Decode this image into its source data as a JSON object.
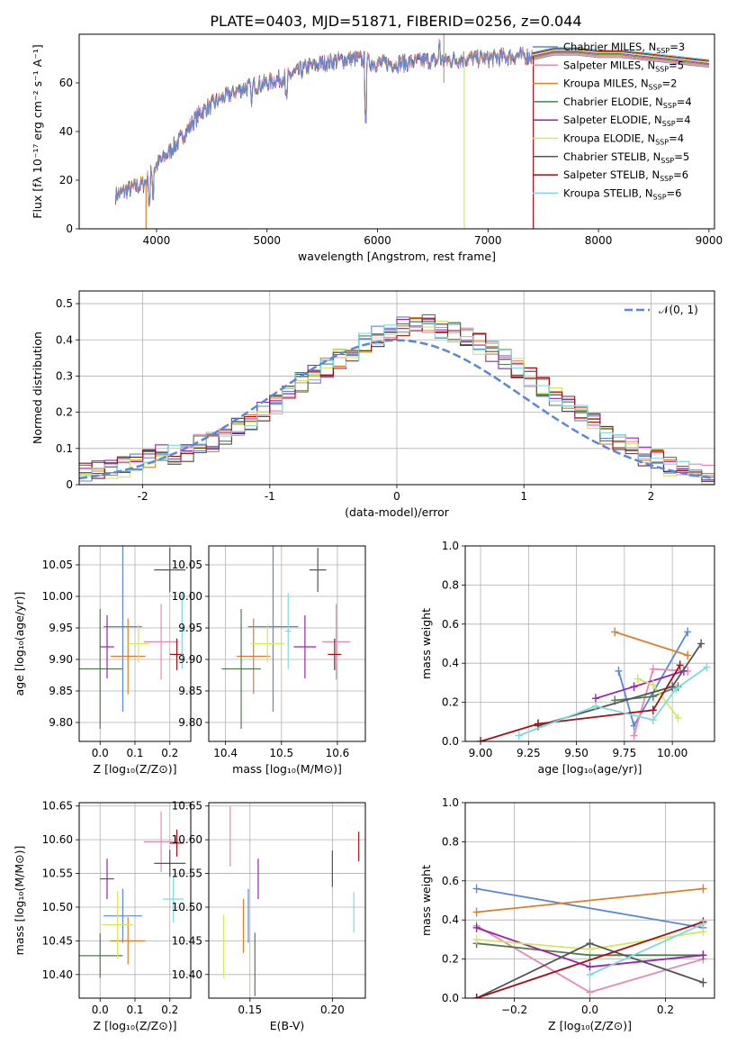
{
  "figure_title": "PLATE=0403, MJD=51871, FIBERID=0256, z=0.044",
  "colors": {
    "chabrier_miles": "#5b87d8",
    "salpeter_miles": "#e889b4",
    "kroupa_miles": "#dd7f2a",
    "chabrier_elodie": "#4f7d52",
    "salpeter_elodie": "#9a22b0",
    "kroupa_elodie": "#d3e85a",
    "chabrier_stelib": "#555555",
    "salpeter_stelib": "#a50f15",
    "kroupa_stelib": "#7fd9dc",
    "normal": "#5b87d8"
  },
  "chart_data": [
    {
      "id": "spectrum",
      "type": "line",
      "xlabel": "wavelength [Angstrom, rest frame]",
      "ylabel": "Flux [fλ 10⁻¹⁷ erg cm⁻² s⁻¹ A⁻¹]",
      "xlim": [
        3300,
        9050
      ],
      "ylim": [
        0,
        80
      ],
      "xticks": [
        4000,
        5000,
        6000,
        7000,
        8000,
        9000
      ],
      "yticks": [
        0,
        20,
        40,
        60
      ],
      "legend_position": "right",
      "legend": [
        {
          "model": "Chabrier MILES",
          "n": "3",
          "color_key": "chabrier_miles"
        },
        {
          "model": "Salpeter MILES",
          "n": "5",
          "color_key": "salpeter_miles"
        },
        {
          "model": "Kroupa MILES",
          "n": "2",
          "color_key": "kroupa_miles"
        },
        {
          "model": "Chabrier ELODIE",
          "n": "4",
          "color_key": "chabrier_elodie"
        },
        {
          "model": "Salpeter ELODIE",
          "n": "4",
          "color_key": "salpeter_elodie"
        },
        {
          "model": "Kroupa ELODIE",
          "n": "4",
          "color_key": "kroupa_elodie"
        },
        {
          "model": "Chabrier STELIB",
          "n": "5",
          "color_key": "chabrier_stelib"
        },
        {
          "model": "Salpeter STELIB",
          "n": "6",
          "color_key": "salpeter_stelib"
        },
        {
          "model": "Kroupa STELIB",
          "n": "6",
          "color_key": "kroupa_stelib"
        }
      ],
      "legend_nssp": "N",
      "legend_nssp_sub": "SSP",
      "continuum": {
        "x": [
          3630,
          3800,
          3900,
          4000,
          4200,
          4400,
          4600,
          4800,
          5000,
          5200,
          5400,
          5600,
          5800,
          6000,
          6200,
          6400,
          6600,
          6800,
          7000,
          7200,
          7400
        ],
        "y": [
          14,
          17,
          19,
          26,
          36,
          48,
          54,
          58,
          60,
          63,
          67,
          69,
          70,
          68,
          68,
          69,
          69,
          70,
          70,
          71,
          71
        ]
      },
      "model_x": [
        7400,
        7600,
        7800,
        8000,
        8200,
        8400,
        8600,
        8800,
        9000
      ],
      "model_y": [
        71,
        73,
        73,
        72,
        72,
        71,
        70,
        69,
        68
      ],
      "dropouts": [
        {
          "x": 3905,
          "color_key": "kroupa_miles"
        },
        {
          "x": 6785,
          "color_key": "kroupa_elodie"
        },
        {
          "x": 7410,
          "color_key": "salpeter_stelib"
        }
      ]
    },
    {
      "id": "residuals",
      "type": "step",
      "xlabel": "(data-model)/error",
      "ylabel": "Normed distribution",
      "xlim": [
        -2.5,
        2.5
      ],
      "ylim": [
        0,
        0.535
      ],
      "xticks": [
        -2,
        -1,
        0,
        1,
        2
      ],
      "yticks": [
        0.0,
        0.1,
        0.2,
        0.3,
        0.4,
        0.5
      ],
      "legend_position": "top-right",
      "legend_label": "𝒩(0, 1)",
      "bin_width": 0.1,
      "bin_start": -2.5,
      "reference": [
        0.04,
        0.04,
        0.04,
        0.05,
        0.06,
        0.07,
        0.08,
        0.08,
        0.09,
        0.11,
        0.12,
        0.14,
        0.16,
        0.18,
        0.2,
        0.22,
        0.25,
        0.28,
        0.3,
        0.32,
        0.35,
        0.37,
        0.39,
        0.41,
        0.42,
        0.44,
        0.45,
        0.44,
        0.43,
        0.42,
        0.41,
        0.39,
        0.37,
        0.35,
        0.32,
        0.3,
        0.27,
        0.24,
        0.22,
        0.19,
        0.17,
        0.14,
        0.12,
        0.1,
        0.08,
        0.07,
        0.05,
        0.04,
        0.03,
        0.03
      ],
      "histogram_offsets": [
        0.02,
        -0.03,
        0.01,
        -0.01,
        0.03,
        -0.02,
        0.0,
        0.02,
        -0.02
      ]
    },
    {
      "id": "age_vs_z",
      "type": "errorbar",
      "xlabel": "Z [log₁₀(Z/Z⊙)]",
      "ylabel": "age  [log₁₀(age/yr)]",
      "xlim": [
        -0.06,
        0.26
      ],
      "ylim": [
        9.77,
        10.08
      ],
      "xticks": [
        0.0,
        0.1,
        0.2
      ],
      "xtick_labels": [
        "0.0",
        "0.1",
        "0.2"
      ],
      "yticks": [
        9.8,
        9.85,
        9.9,
        9.95,
        10.0,
        10.05
      ],
      "ytick_labels": [
        "9.80",
        "9.85",
        "9.90",
        "9.95",
        "10.00",
        "10.05"
      ],
      "points": [
        {
          "color_key": "chabrier_miles",
          "x": 0.065,
          "y": 9.952,
          "xerr": 0.055,
          "yerr": 0.135
        },
        {
          "color_key": "salpeter_miles",
          "x": 0.175,
          "y": 9.928,
          "xerr": 0.05,
          "yerr": 0.06
        },
        {
          "color_key": "kroupa_miles",
          "x": 0.08,
          "y": 9.905,
          "xerr": 0.05,
          "yerr": 0.06
        },
        {
          "color_key": "chabrier_elodie",
          "x": 0.0,
          "y": 9.885,
          "xerr": 0.065,
          "yerr": 0.095
        },
        {
          "color_key": "salpeter_elodie",
          "x": 0.02,
          "y": 9.92,
          "xerr": 0.02,
          "yerr": 0.05
        },
        {
          "color_key": "kroupa_elodie",
          "x": 0.11,
          "y": 9.925,
          "xerr": 0.03,
          "yerr": 0.03
        },
        {
          "color_key": "chabrier_stelib",
          "x": 0.2,
          "y": 10.042,
          "xerr": 0.045,
          "yerr": 0.035
        },
        {
          "color_key": "salpeter_stelib",
          "x": 0.22,
          "y": 9.908,
          "xerr": 0.02,
          "yerr": 0.025
        },
        {
          "color_key": "kroupa_stelib",
          "x": 0.235,
          "y": 9.945,
          "xerr": 0.01,
          "yerr": 0.06
        }
      ]
    },
    {
      "id": "age_vs_mass",
      "type": "errorbar",
      "xlabel": "mass [log₁₀(M/M⊙)]",
      "xlim": [
        10.37,
        10.65
      ],
      "ylim": [
        9.77,
        10.08
      ],
      "xticks": [
        10.4,
        10.5,
        10.6
      ],
      "xtick_labels": [
        "10.4",
        "10.5",
        "10.6"
      ],
      "yticks": [
        9.8,
        9.85,
        9.9,
        9.95,
        10.0,
        10.05
      ],
      "ytick_labels": [
        "9.80",
        "9.85",
        "9.90",
        "9.95",
        "10.00",
        "10.05"
      ],
      "points": [
        {
          "color_key": "chabrier_miles",
          "x": 10.485,
          "y": 9.952,
          "xerr": 0.045,
          "yerr": 0.135
        },
        {
          "color_key": "salpeter_miles",
          "x": 10.598,
          "y": 9.928,
          "xerr": 0.025,
          "yerr": 0.06
        },
        {
          "color_key": "kroupa_miles",
          "x": 10.45,
          "y": 9.905,
          "xerr": 0.03,
          "yerr": 0.06
        },
        {
          "color_key": "chabrier_elodie",
          "x": 10.428,
          "y": 9.885,
          "xerr": 0.035,
          "yerr": 0.095
        },
        {
          "color_key": "salpeter_elodie",
          "x": 10.542,
          "y": 9.92,
          "xerr": 0.02,
          "yerr": 0.05
        },
        {
          "color_key": "kroupa_elodie",
          "x": 10.475,
          "y": 9.925,
          "xerr": 0.03,
          "yerr": 0.03
        },
        {
          "color_key": "chabrier_stelib",
          "x": 10.565,
          "y": 10.042,
          "xerr": 0.015,
          "yerr": 0.035
        },
        {
          "color_key": "salpeter_stelib",
          "x": 10.595,
          "y": 9.908,
          "xerr": 0.012,
          "yerr": 0.025
        },
        {
          "color_key": "kroupa_stelib",
          "x": 10.512,
          "y": 9.945,
          "xerr": 0.005,
          "yerr": 0.06
        }
      ]
    },
    {
      "id": "sfh_age",
      "type": "line",
      "xlabel": "age  [log₁₀(age/yr)]",
      "ylabel": "mass weight",
      "xlim": [
        8.92,
        10.22
      ],
      "ylim": [
        0,
        1
      ],
      "xticks": [
        9.0,
        9.25,
        9.5,
        9.75,
        10.0
      ],
      "xtick_labels": [
        "9.00",
        "9.25",
        "9.50",
        "9.75",
        "10.00"
      ],
      "yticks": [
        0,
        0.2,
        0.4,
        0.6,
        0.8,
        1.0
      ],
      "ytick_labels": [
        "0.0",
        "0.2",
        "0.4",
        "0.6",
        "0.8",
        "1.0"
      ],
      "series": [
        {
          "color_key": "chabrier_miles",
          "x": [
            9.72,
            9.8,
            10.08
          ],
          "y": [
            0.36,
            0.08,
            0.56
          ]
        },
        {
          "color_key": "salpeter_miles",
          "x": [
            9.8,
            9.9,
            10.08
          ],
          "y": [
            0.03,
            0.37,
            0.36
          ]
        },
        {
          "color_key": "kroupa_miles",
          "x": [
            9.7,
            10.08
          ],
          "y": [
            0.56,
            0.44
          ]
        },
        {
          "color_key": "chabrier_elodie",
          "x": [
            9.7,
            9.9,
            10.03
          ],
          "y": [
            0.21,
            0.23,
            0.28
          ]
        },
        {
          "color_key": "salpeter_elodie",
          "x": [
            9.6,
            9.8,
            10.06
          ],
          "y": [
            0.22,
            0.28,
            0.36
          ]
        },
        {
          "color_key": "kroupa_elodie",
          "x": [
            9.82,
            9.9,
            10.03
          ],
          "y": [
            0.32,
            0.29,
            0.12
          ]
        },
        {
          "color_key": "chabrier_stelib",
          "x": [
            9.3,
            10.0,
            10.15
          ],
          "y": [
            0.08,
            0.28,
            0.5
          ]
        },
        {
          "color_key": "salpeter_stelib",
          "x": [
            9.0,
            9.3,
            9.9,
            10.04
          ],
          "y": [
            0.0,
            0.09,
            0.16,
            0.39
          ]
        },
        {
          "color_key": "kroupa_stelib",
          "x": [
            9.2,
            9.6,
            9.9,
            10.02,
            10.18
          ],
          "y": [
            0.03,
            0.18,
            0.11,
            0.27,
            0.38
          ]
        }
      ]
    },
    {
      "id": "mass_vs_z",
      "type": "errorbar",
      "xlabel": "Z [log₁₀(Z/Z⊙)]",
      "ylabel": "mass [log₁₀(M/M⊙)]",
      "xlim": [
        -0.06,
        0.26
      ],
      "ylim": [
        10.365,
        10.655
      ],
      "xticks": [
        0.0,
        0.1,
        0.2
      ],
      "xtick_labels": [
        "0.0",
        "0.1",
        "0.2"
      ],
      "yticks": [
        10.4,
        10.45,
        10.5,
        10.55,
        10.6,
        10.65
      ],
      "ytick_labels": [
        "10.40",
        "10.45",
        "10.50",
        "10.55",
        "10.60",
        "10.65"
      ],
      "points": [
        {
          "color_key": "chabrier_miles",
          "x": 0.065,
          "y": 10.487,
          "xerr": 0.055,
          "yerr": 0.04
        },
        {
          "color_key": "salpeter_miles",
          "x": 0.175,
          "y": 10.597,
          "xerr": 0.05,
          "yerr": 0.045
        },
        {
          "color_key": "kroupa_miles",
          "x": 0.08,
          "y": 10.45,
          "xerr": 0.05,
          "yerr": 0.035
        },
        {
          "color_key": "chabrier_elodie",
          "x": 0.0,
          "y": 10.428,
          "xerr": 0.065,
          "yerr": 0.033
        },
        {
          "color_key": "salpeter_elodie",
          "x": 0.02,
          "y": 10.542,
          "xerr": 0.02,
          "yerr": 0.03
        },
        {
          "color_key": "kroupa_elodie",
          "x": 0.05,
          "y": 10.474,
          "xerr": 0.045,
          "yerr": 0.05
        },
        {
          "color_key": "chabrier_stelib",
          "x": 0.2,
          "y": 10.565,
          "xerr": 0.045,
          "yerr": 0.02
        },
        {
          "color_key": "salpeter_stelib",
          "x": 0.22,
          "y": 10.595,
          "xerr": 0.02,
          "yerr": 0.02
        },
        {
          "color_key": "kroupa_stelib",
          "x": 0.21,
          "y": 10.512,
          "xerr": 0.03,
          "yerr": 0.035
        }
      ]
    },
    {
      "id": "mass_vs_ebv",
      "type": "errorbar",
      "xlabel": "E(B-V)",
      "xlim": [
        0.125,
        0.22
      ],
      "ylim": [
        10.365,
        10.655
      ],
      "xticks": [
        0.15,
        0.2
      ],
      "xtick_labels": [
        "0.15",
        "0.20"
      ],
      "yticks": [
        10.4,
        10.45,
        10.5,
        10.55,
        10.6,
        10.65
      ],
      "ytick_labels": [
        "10.40",
        "10.45",
        "10.50",
        "10.55",
        "10.60",
        "10.65"
      ],
      "points": [
        {
          "color_key": "chabrier_miles",
          "x": 0.149,
          "y": 10.487,
          "xerr": 0,
          "yerr": 0.04
        },
        {
          "color_key": "salpeter_miles",
          "x": 0.138,
          "y": 10.605,
          "xerr": 0,
          "yerr": 0.045
        },
        {
          "color_key": "kroupa_miles",
          "x": 0.146,
          "y": 10.472,
          "xerr": 0,
          "yerr": 0.04
        },
        {
          "color_key": "chabrier_elodie",
          "x": 0.153,
          "y": 10.415,
          "xerr": 0,
          "yerr": 0.047
        },
        {
          "color_key": "salpeter_elodie",
          "x": 0.155,
          "y": 10.542,
          "xerr": 0,
          "yerr": 0.03
        },
        {
          "color_key": "kroupa_elodie",
          "x": 0.134,
          "y": 10.442,
          "xerr": 0,
          "yerr": 0.047
        },
        {
          "color_key": "chabrier_stelib",
          "x": 0.2,
          "y": 10.557,
          "xerr": 0,
          "yerr": 0.027
        },
        {
          "color_key": "salpeter_stelib",
          "x": 0.216,
          "y": 10.59,
          "xerr": 0,
          "yerr": 0.022
        },
        {
          "color_key": "kroupa_stelib",
          "x": 0.213,
          "y": 10.492,
          "xerr": 0,
          "yerr": 0.03
        }
      ]
    },
    {
      "id": "sfh_z",
      "type": "line",
      "xlabel": "Z [log₁₀(Z/Z⊙)]",
      "ylabel": "mass weight",
      "xlim": [
        -0.33,
        0.33
      ],
      "ylim": [
        0,
        1
      ],
      "xticks": [
        -0.2,
        0.0,
        0.2
      ],
      "xtick_labels": [
        "−0.2",
        "0.0",
        "0.2"
      ],
      "yticks": [
        0,
        0.2,
        0.4,
        0.6,
        0.8,
        1.0
      ],
      "ytick_labels": [
        "0.0",
        "0.2",
        "0.4",
        "0.6",
        "0.8",
        "1.0"
      ],
      "series": [
        {
          "color_key": "chabrier_miles",
          "x": [
            -0.3,
            0.3
          ],
          "y": [
            0.56,
            0.36
          ]
        },
        {
          "color_key": "salpeter_miles",
          "x": [
            -0.3,
            0.0,
            0.3
          ],
          "y": [
            0.37,
            0.03,
            0.2
          ]
        },
        {
          "color_key": "kroupa_miles",
          "x": [
            -0.3,
            0.3
          ],
          "y": [
            0.44,
            0.56
          ]
        },
        {
          "color_key": "chabrier_elodie",
          "x": [
            -0.3,
            0.0,
            0.3
          ],
          "y": [
            0.28,
            0.22,
            0.22
          ]
        },
        {
          "color_key": "salpeter_elodie",
          "x": [
            -0.3,
            0.0,
            0.3
          ],
          "y": [
            0.36,
            0.16,
            0.22
          ]
        },
        {
          "color_key": "kroupa_elodie",
          "x": [
            -0.3,
            0.0,
            0.3
          ],
          "y": [
            0.3,
            0.25,
            0.34
          ]
        },
        {
          "color_key": "chabrier_stelib",
          "x": [
            -0.3,
            0.0,
            0.3
          ],
          "y": [
            0.0,
            0.28,
            0.08
          ]
        },
        {
          "color_key": "salpeter_stelib",
          "x": [
            -0.3,
            0.3
          ],
          "y": [
            0.0,
            0.39
          ]
        },
        {
          "color_key": "kroupa_stelib",
          "x": [
            0.0,
            0.3
          ],
          "y": [
            0.12,
            0.38
          ]
        }
      ]
    }
  ]
}
